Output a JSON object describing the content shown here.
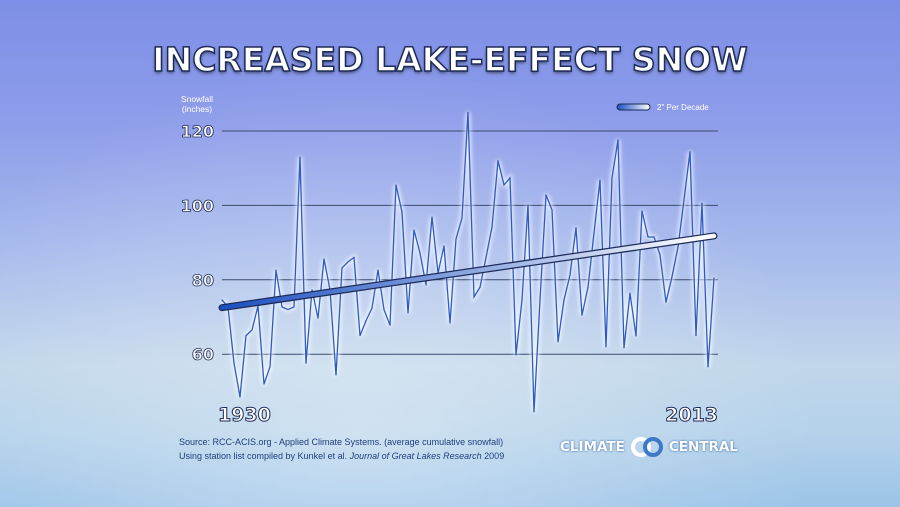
{
  "title": "INCREASED LAKE-EFFECT SNOW",
  "chart_data": {
    "type": "line",
    "ylabel_line1": "Snowfall",
    "ylabel_line2": "(inches)",
    "y_ticks": [
      60,
      80,
      100,
      120
    ],
    "ylim": [
      44,
      127
    ],
    "x_start_label": "1930",
    "x_end_label": "2013",
    "grid": "horizontal",
    "series": [
      {
        "color": "#2c5cc5",
        "values": [
          74.6,
          72.7,
          57.6,
          48.5,
          65,
          66.5,
          73,
          52,
          56.6,
          82.6,
          72.7,
          72,
          72.7,
          113,
          57.6,
          77.3,
          69.7,
          85.6,
          77.3,
          54.4,
          83.2,
          84.8,
          86,
          65,
          69,
          72.4,
          82.6,
          72,
          67.8,
          105.5,
          98.2,
          71.1,
          93.4,
          87.2,
          78.6,
          96.9,
          81.8,
          89.1,
          68.4,
          91,
          96.6,
          125,
          75.4,
          78,
          86,
          94.2,
          112,
          105.5,
          107.4,
          59.8,
          74.6,
          100.1,
          44.5,
          74.6,
          102.8,
          98.8,
          63.3,
          74.6,
          81.3,
          94,
          70.5,
          78,
          92.6,
          106.8,
          62,
          107.4,
          117.6,
          61.7,
          76.4,
          64.9,
          98.5,
          91.5,
          91.5,
          86.7,
          74,
          80.8,
          88.8,
          101.5,
          114.4,
          65,
          100.6,
          56.6,
          80.5
        ]
      }
    ],
    "trend": {
      "name": "2\" Per Decade",
      "start": 72.5,
      "end": 91.8,
      "color_start": "#1a4fc0",
      "color_end": "#ffffff"
    },
    "legend": "top-right"
  },
  "source_line1": "Source: RCC-ACIS.org - Applied Climate Systems. (average cumulative snowfall)",
  "source_line2_prefix": "Using station list compiled by Kunkel et al. ",
  "source_line2_journal": "Journal of Great Lakes Research",
  "source_line2_year": " 2009",
  "logo": {
    "left": "CLIMATE",
    "right": "CENTRAL"
  }
}
